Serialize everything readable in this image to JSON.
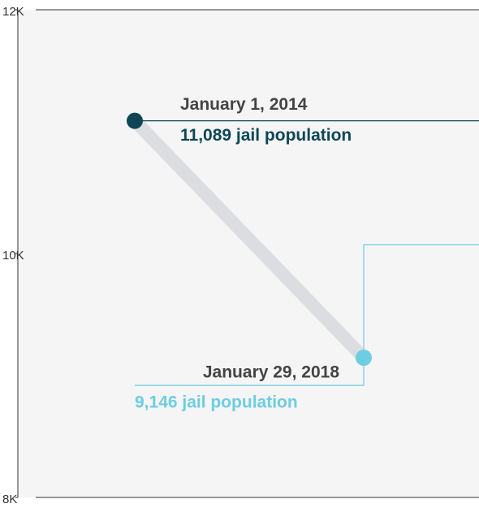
{
  "chart_data": {
    "type": "line",
    "categories": [
      "January 1, 2014",
      "January 29, 2018"
    ],
    "values": [
      11089,
      9146
    ],
    "value_labels": [
      "11,089 jail population",
      "9,146 jail population"
    ],
    "colors": [
      "#0e4656",
      "#6dcde2"
    ],
    "ylim": [
      8000,
      12000
    ],
    "yticks": [
      {
        "value": 8000,
        "label": "8K"
      },
      {
        "value": 10000,
        "label": "10K"
      },
      {
        "value": 12000,
        "label": "12K"
      }
    ]
  }
}
